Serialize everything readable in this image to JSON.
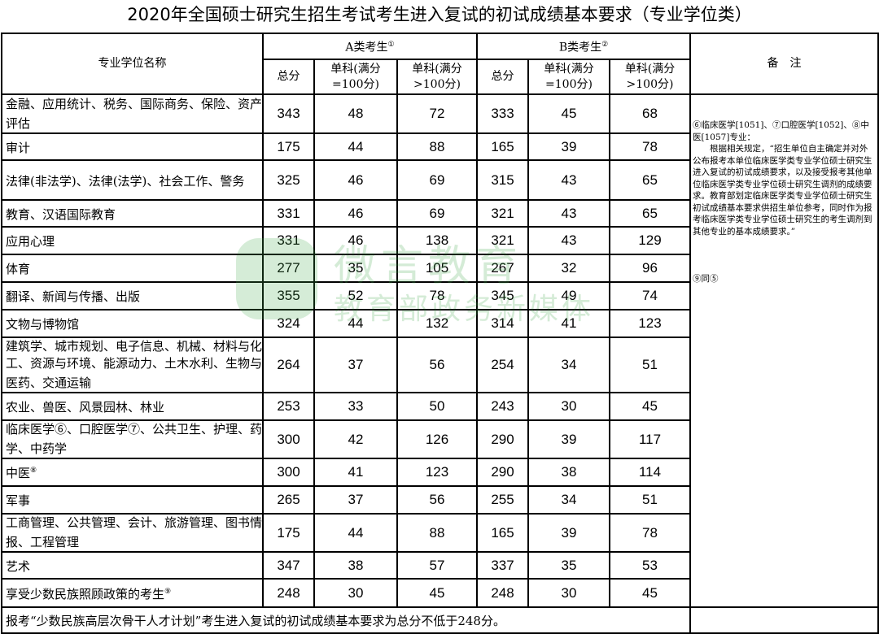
{
  "title": "2020年全国硕士研究生招生考试考生进入复试的初试成绩基本要求（专业学位类）",
  "header": {
    "name_col": "专业学位名称",
    "group_a": "A类考生",
    "group_a_sup": "①",
    "group_b": "B类考生",
    "group_b_sup": "②",
    "total": "总分",
    "single_100_l1": "单科(满分",
    "single_100_l2": "=100分)",
    "single_gt100_l1": "单科(满分",
    "single_gt100_l2": ">100分)",
    "notes": "备　注"
  },
  "rows": [
    {
      "name": "金融、应用统计、税务、国际商务、保险、资产评估",
      "sup": "",
      "a": [
        "343",
        "48",
        "72"
      ],
      "b": [
        "333",
        "45",
        "68"
      ]
    },
    {
      "name": "审计",
      "sup": "",
      "a": [
        "175",
        "44",
        "88"
      ],
      "b": [
        "165",
        "39",
        "78"
      ]
    },
    {
      "name": "法律(非法学)、法律(法学)、社会工作、警务",
      "sup": "",
      "a": [
        "325",
        "46",
        "69"
      ],
      "b": [
        "315",
        "43",
        "65"
      ]
    },
    {
      "name": "教育、汉语国际教育",
      "sup": "",
      "a": [
        "331",
        "46",
        "69"
      ],
      "b": [
        "321",
        "43",
        "65"
      ]
    },
    {
      "name": "应用心理",
      "sup": "",
      "a": [
        "331",
        "46",
        "138"
      ],
      "b": [
        "321",
        "43",
        "129"
      ]
    },
    {
      "name": "体育",
      "sup": "",
      "a": [
        "277",
        "35",
        "105"
      ],
      "b": [
        "267",
        "32",
        "96"
      ]
    },
    {
      "name": "翻译、新闻与传播、出版",
      "sup": "",
      "a": [
        "355",
        "52",
        "78"
      ],
      "b": [
        "345",
        "49",
        "74"
      ]
    },
    {
      "name": "文物与博物馆",
      "sup": "",
      "a": [
        "324",
        "44",
        "132"
      ],
      "b": [
        "314",
        "41",
        "123"
      ]
    },
    {
      "name": "建筑学、城市规划、电子信息、机械、材料与化工、资源与环境、能源动力、土木水利、生物与医药、交通运输",
      "sup": "",
      "a": [
        "264",
        "37",
        "56"
      ],
      "b": [
        "254",
        "34",
        "51"
      ]
    },
    {
      "name": "农业、兽医、风景园林、林业",
      "sup": "",
      "a": [
        "253",
        "33",
        "50"
      ],
      "b": [
        "243",
        "30",
        "45"
      ]
    },
    {
      "name": "临床医学⑥、口腔医学⑦、公共卫生、护理、药学、中药学",
      "sup": "",
      "a": [
        "300",
        "42",
        "126"
      ],
      "b": [
        "290",
        "39",
        "117"
      ]
    },
    {
      "name": "中医",
      "sup": "⑧",
      "a": [
        "300",
        "41",
        "123"
      ],
      "b": [
        "290",
        "38",
        "114"
      ]
    },
    {
      "name": "军事",
      "sup": "",
      "a": [
        "265",
        "37",
        "56"
      ],
      "b": [
        "255",
        "34",
        "51"
      ]
    },
    {
      "name": "工商管理、公共管理、会计、旅游管理、图书情报、工程管理",
      "sup": "",
      "a": [
        "175",
        "44",
        "88"
      ],
      "b": [
        "165",
        "39",
        "78"
      ]
    },
    {
      "name": "艺术",
      "sup": "",
      "a": [
        "347",
        "38",
        "57"
      ],
      "b": [
        "337",
        "35",
        "53"
      ]
    },
    {
      "name": "享受少数民族照顾政策的考生",
      "sup": "⑨",
      "a": [
        "248",
        "30",
        "45"
      ],
      "b": [
        "248",
        "30",
        "45"
      ]
    }
  ],
  "notes": {
    "p1": "⑥临床医学[1051]、⑦口腔医学[1052]、⑧中医[1057]专业：",
    "p2": "　　根据相关规定，“招生单位自主确定并对外公布报考本单位临床医学类专业学位硕士研究生进入复试的初试成绩要求，以及接受报考其他单位临床医学类专业学位硕士研究生调剂的成绩要求。教育部划定临床医学类专业学位硕士研究生初试成绩基本要求供招生单位参考，同时作为报考临床医学类专业学位硕士研究生的考生调剂到其他专业的基本成绩要求。”",
    "p3": "⑨同⑤"
  },
  "footer": "报考“少数民族高层次骨干人才计划”考生进入复试的初试成绩基本要求为总分不低于248分。",
  "watermark": {
    "line1": "微言教育",
    "line2": "教育部政务新媒体",
    "color": "#3ea84a"
  }
}
